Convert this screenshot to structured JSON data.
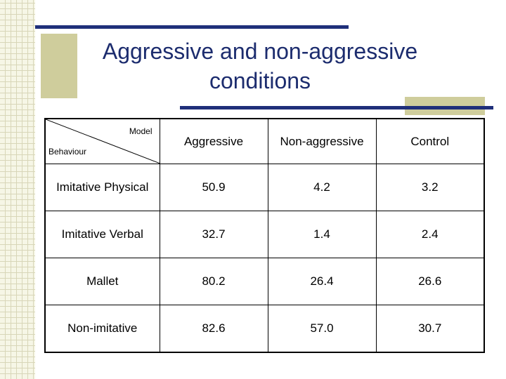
{
  "slide": {
    "title_line1": "Aggressive and non-aggressive",
    "title_line2": "conditions"
  },
  "table": {
    "corner": {
      "top_label": "Model",
      "bottom_label": "Behaviour"
    },
    "columns": [
      "Aggressive",
      "Non-aggressive",
      "Control"
    ],
    "rows": [
      {
        "label": "Imitative Physical",
        "values": [
          "50.9",
          "4.2",
          "3.2"
        ]
      },
      {
        "label": "Imitative Verbal",
        "values": [
          "32.7",
          "1.4",
          "2.4"
        ]
      },
      {
        "label": "Mallet",
        "values": [
          "80.2",
          "26.4",
          "26.6"
        ]
      },
      {
        "label": "Non-imitative",
        "values": [
          "82.6",
          "57.0",
          "30.7"
        ]
      }
    ]
  },
  "colors": {
    "accent_bar": "#1f2f7a",
    "accent_square": "#cfcd9c",
    "title": "#1c2c6e"
  }
}
